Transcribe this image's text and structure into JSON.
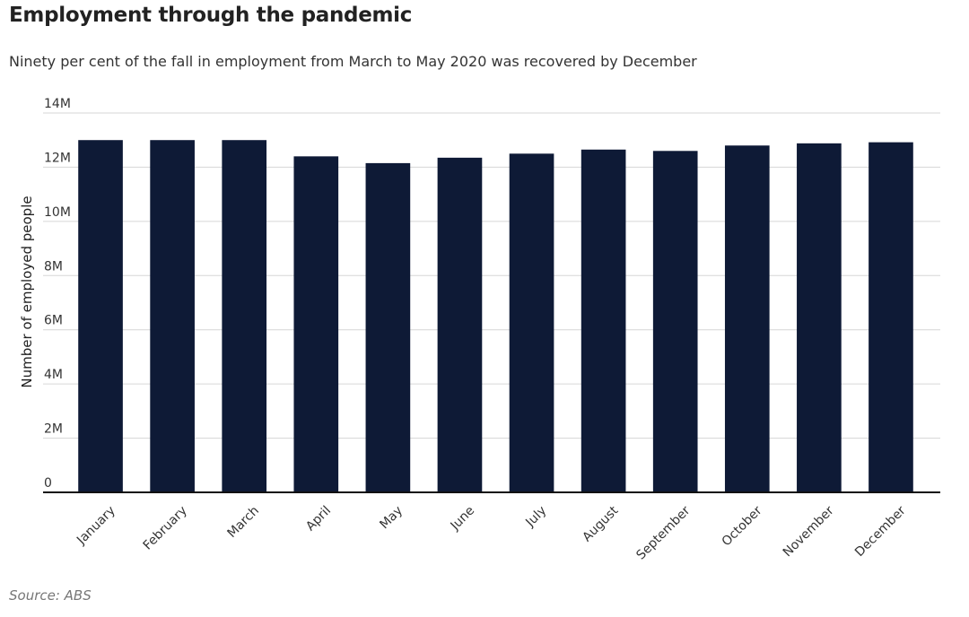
{
  "header": {
    "title": "Employment through the pandemic",
    "subtitle": "Ninety per cent of the fall in employment from March to May 2020 was recovered by December"
  },
  "footer": {
    "source": "Source: ABS"
  },
  "colors": {
    "bar": "#0e1a36",
    "grid": "#d6d6d6",
    "baseline": "#111111"
  },
  "chart_data": {
    "type": "bar",
    "title": "Employment through the pandemic",
    "subtitle": "Ninety per cent of the fall in employment from March to May 2020 was recovered by December",
    "xlabel": "",
    "ylabel": "Number of employed people",
    "ylim": [
      0,
      14000000
    ],
    "yticks": [
      0,
      2000000,
      4000000,
      6000000,
      8000000,
      10000000,
      12000000,
      14000000
    ],
    "ytick_labels": [
      "0",
      "2M",
      "4M",
      "6M",
      "8M",
      "10M",
      "12M",
      "14M"
    ],
    "grid": true,
    "legend": "none",
    "categories": [
      "January",
      "February",
      "March",
      "April",
      "May",
      "June",
      "July",
      "August",
      "September",
      "October",
      "November",
      "December"
    ],
    "values": [
      13000000,
      13000000,
      13000000,
      12400000,
      12150000,
      12350000,
      12500000,
      12650000,
      12600000,
      12800000,
      12880000,
      12920000
    ]
  }
}
